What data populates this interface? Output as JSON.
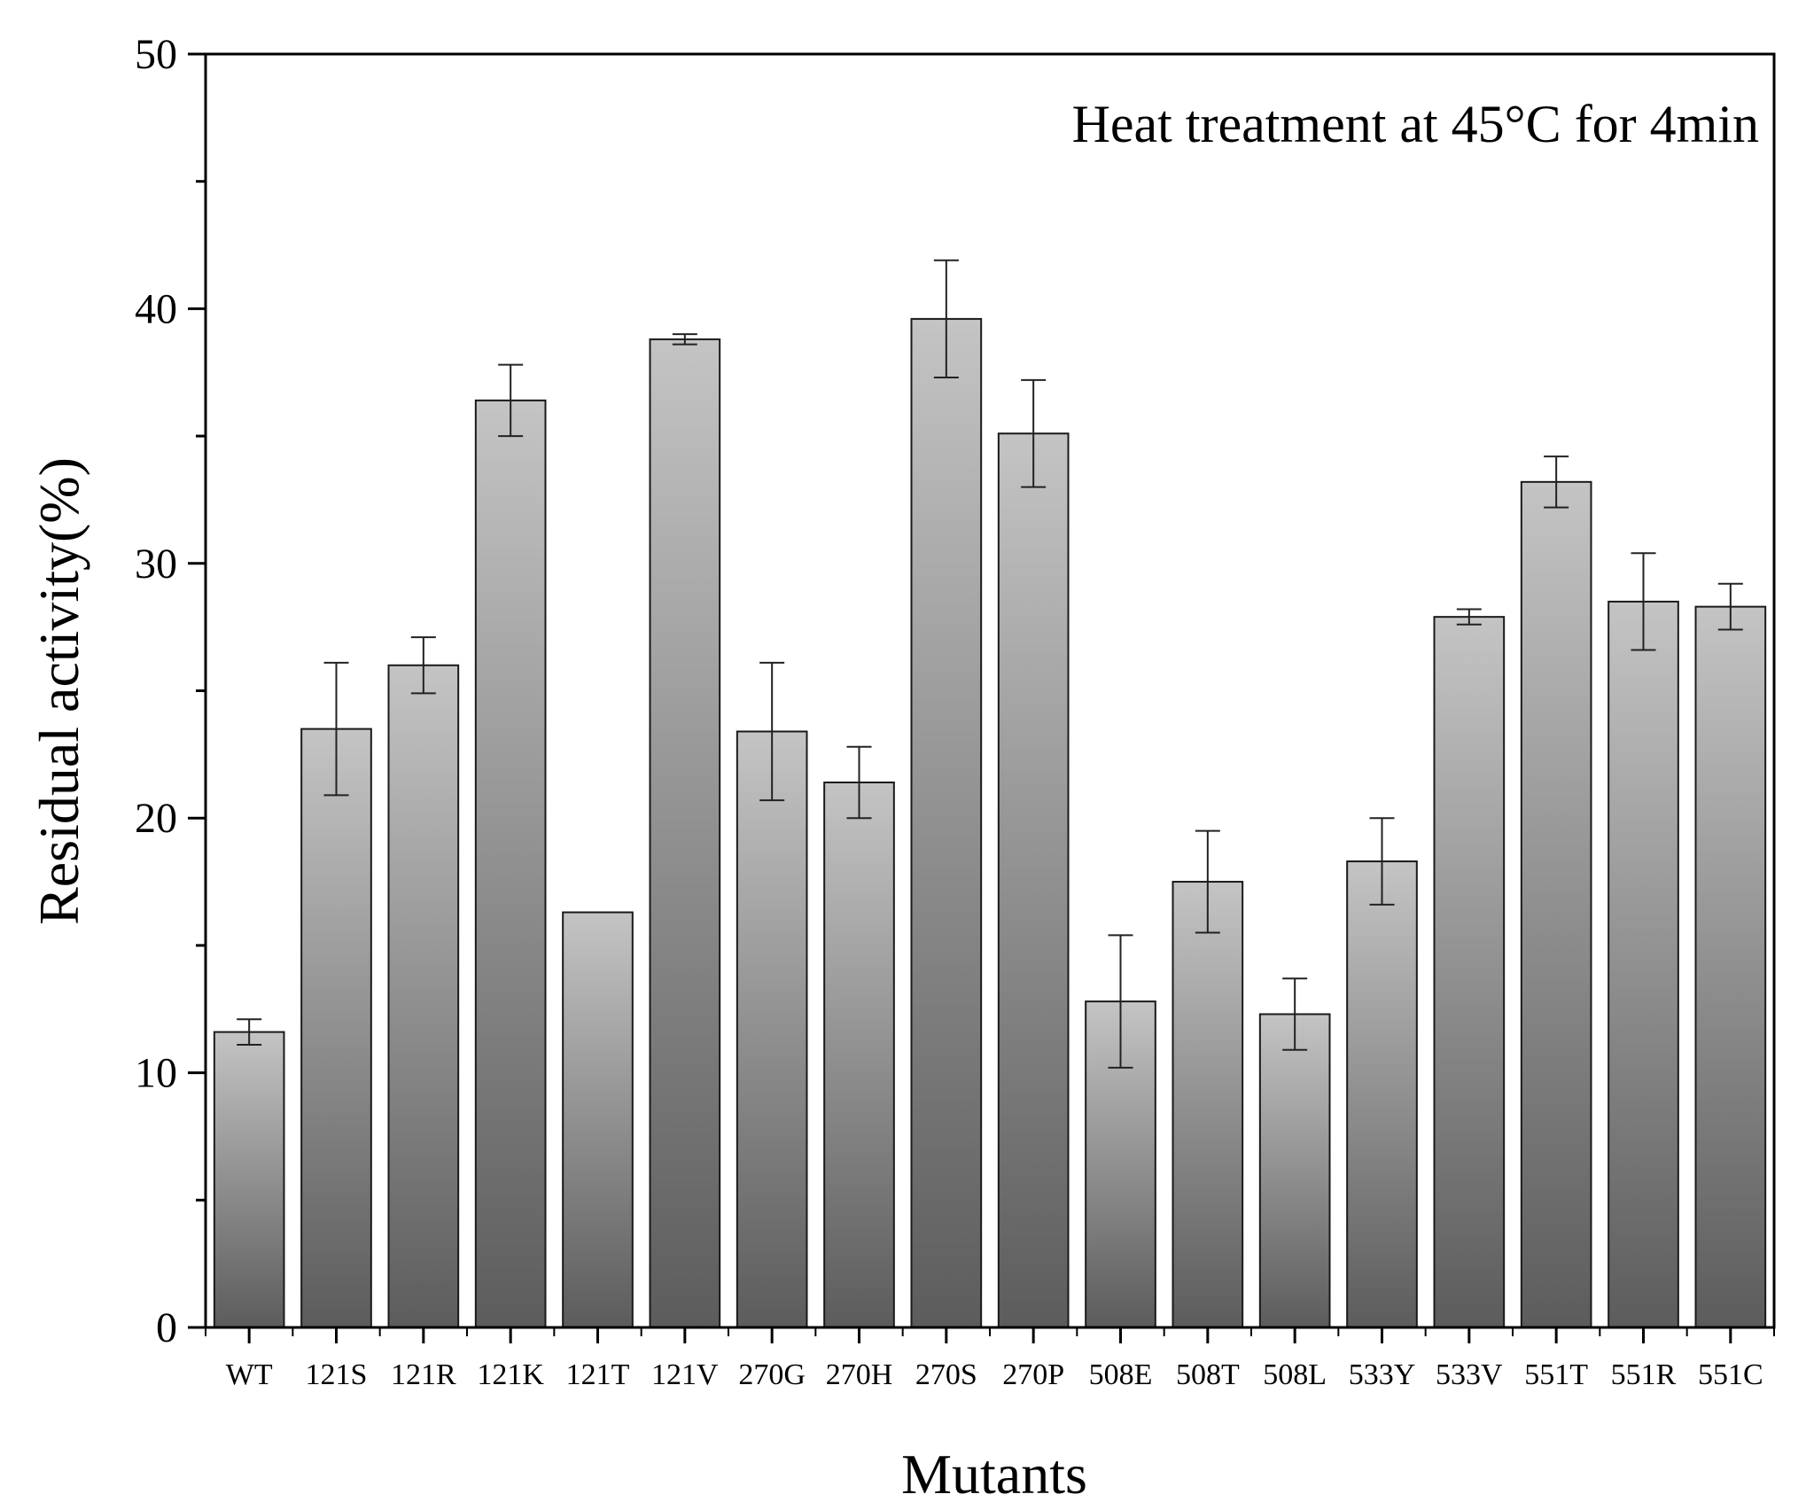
{
  "chart_data": {
    "type": "bar",
    "title": "",
    "annotation": "Heat treatment at 45°C for 4min",
    "xlabel": "Mutants",
    "ylabel": "Residual activity(%)",
    "ylim": [
      0,
      50
    ],
    "yticks": [
      0,
      10,
      20,
      30,
      40,
      50
    ],
    "categories": [
      "WT",
      "121S",
      "121R",
      "121K",
      "121T",
      "121V",
      "270G",
      "270H",
      "270S",
      "270P",
      "508E",
      "508T",
      "508L",
      "533Y",
      "533V",
      "551T",
      "551R",
      "551C"
    ],
    "values": [
      11.6,
      23.5,
      26.0,
      36.4,
      16.3,
      38.8,
      23.4,
      21.4,
      39.6,
      35.1,
      12.8,
      17.5,
      12.3,
      18.3,
      27.9,
      33.2,
      28.5,
      28.3
    ],
    "errors": [
      0.5,
      2.6,
      1.1,
      1.4,
      0,
      0.2,
      2.7,
      1.4,
      2.3,
      2.1,
      2.6,
      2.0,
      1.4,
      1.7,
      0.3,
      1.0,
      1.9,
      0.9
    ],
    "grid": false,
    "legend": "none",
    "colors": {
      "bar_light": "#c4c4c4",
      "bar_dark": "#5c5c5c",
      "axis": "#000000"
    }
  }
}
